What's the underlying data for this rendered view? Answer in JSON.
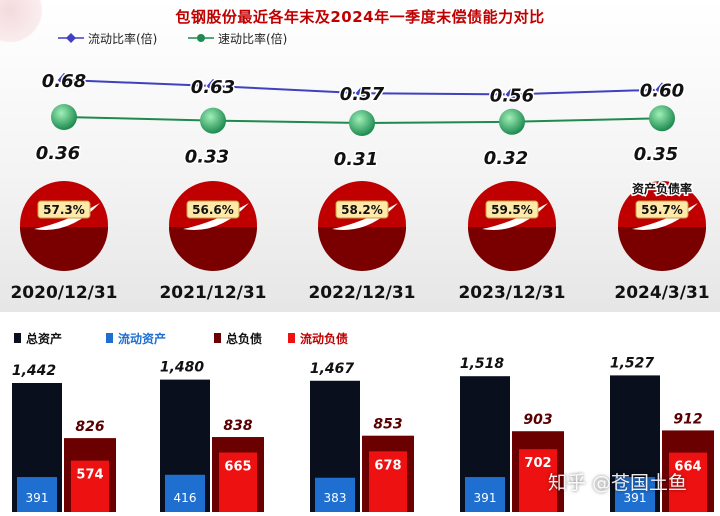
{
  "title": "包钢股份最近各年末及2024年一季度末偿债能力对比",
  "watermark": "知乎 @苍国土鱼",
  "colors": {
    "current_ratio": "#4040c0",
    "quick_ratio": "#1e8a50",
    "pie_red": "#c00000",
    "pie_dark": "#7a0000",
    "bar_total_assets": "#0a0f1e",
    "bar_current_assets": "#1e6fd0",
    "bar_total_liabilities": "#6b0000",
    "bar_current_liabilities": "#ee1111"
  },
  "chart_data": [
    {
      "type": "line",
      "categories": [
        "2020/12/31",
        "2021/12/31",
        "2022/12/31",
        "2023/12/31",
        "2024/3/31"
      ],
      "series": [
        {
          "name": "流动比率(倍)",
          "values": [
            0.68,
            0.63,
            0.57,
            0.56,
            0.6
          ],
          "labels": [
            "0.68",
            "0.63",
            "0.57",
            "0.56",
            "0.60"
          ]
        },
        {
          "name": "速动比率(倍)",
          "values": [
            0.36,
            0.33,
            0.31,
            0.32,
            0.35
          ],
          "labels": [
            "0.36",
            "0.33",
            "0.31",
            "0.32",
            "0.35"
          ]
        }
      ]
    },
    {
      "type": "pie",
      "name": "资产负债率",
      "categories": [
        "2020/12/31",
        "2021/12/31",
        "2022/12/31",
        "2023/12/31",
        "2024/3/31"
      ],
      "values": [
        57.3,
        56.6,
        58.2,
        59.5,
        59.7
      ],
      "labels": [
        "57.3%",
        "56.6%",
        "58.2%",
        "59.5%",
        "59.7%"
      ]
    },
    {
      "type": "bar",
      "categories": [
        "2020/12/31",
        "2021/12/31",
        "2022/12/31",
        "2023/12/31",
        "2024/3/31"
      ],
      "series": [
        {
          "name": "总资产",
          "values": [
            1442,
            1480,
            1467,
            1518,
            1527
          ],
          "labels": [
            "1,442",
            "1,480",
            "1,467",
            "1,518",
            "1,527"
          ]
        },
        {
          "name": "流动资产",
          "values": [
            391,
            416,
            383,
            391,
            391
          ],
          "labels": [
            "391",
            "416",
            "383",
            "391",
            "391"
          ]
        },
        {
          "name": "总负债",
          "values": [
            826,
            838,
            853,
            903,
            912
          ],
          "labels": [
            "826",
            "838",
            "853",
            "903",
            "912"
          ]
        },
        {
          "name": "流动负债",
          "values": [
            574,
            665,
            678,
            702,
            664
          ],
          "labels": [
            "574",
            "665",
            "678",
            "702",
            "664"
          ]
        }
      ]
    }
  ]
}
